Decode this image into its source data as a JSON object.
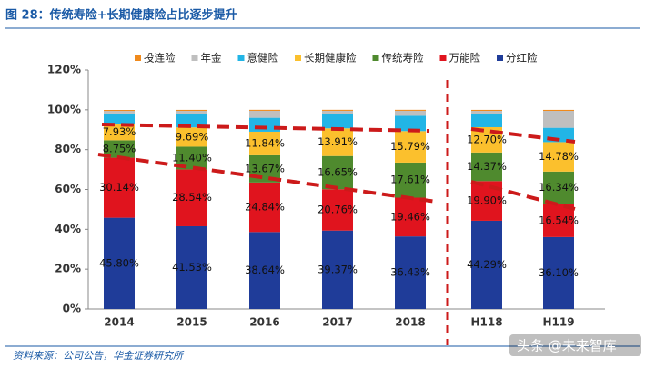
{
  "chart_data": {
    "type": "stacked-bar",
    "title": "图 28：传统寿险+长期健康险占比逐步提升",
    "source": "资料来源：公司公告，华金证券研究所",
    "categories": [
      "2014",
      "2015",
      "2016",
      "2017",
      "2018",
      "H118",
      "H119"
    ],
    "series": [
      {
        "name": "投连险",
        "color": "#f08a1c",
        "values": [
          0.5,
          0.5,
          0.5,
          0.5,
          0.5,
          0.5,
          0.5
        ]
      },
      {
        "name": "年金",
        "color": "#bfbfbf",
        "values": [
          1.3,
          1.5,
          3.5,
          1.5,
          2.5,
          1.5,
          8.5
        ]
      },
      {
        "name": "意健险",
        "color": "#22b5e6",
        "values": [
          5.5,
          6.8,
          7.0,
          7.3,
          7.7,
          6.7,
          7.2
        ]
      },
      {
        "name": "长期健康险",
        "color": "#fbc02d",
        "values": [
          7.93,
          9.69,
          11.84,
          13.91,
          15.79,
          12.7,
          14.78
        ],
        "value_labels": [
          "7.93%",
          "9.69%",
          "11.84%",
          "13.91%",
          "15.79%",
          "12.70%",
          "14.78%"
        ]
      },
      {
        "name": "传统寿险",
        "color": "#4f8a2e",
        "values": [
          8.75,
          11.4,
          13.67,
          16.65,
          17.61,
          14.37,
          16.34
        ],
        "value_labels": [
          "8.75%",
          "11.40%",
          "13.67%",
          "16.65%",
          "17.61%",
          "14.37%",
          "16.34%"
        ]
      },
      {
        "name": "万能险",
        "color": "#e0141e",
        "values": [
          30.14,
          28.54,
          24.84,
          20.76,
          19.46,
          19.9,
          16.54
        ],
        "value_labels": [
          "30.14%",
          "28.54%",
          "24.84%",
          "20.76%",
          "19.46%",
          "19.90%",
          "16.54%"
        ]
      },
      {
        "name": "分红险",
        "color": "#1f3c99",
        "values": [
          45.8,
          41.53,
          38.64,
          39.37,
          36.43,
          44.29,
          36.1
        ],
        "value_labels": [
          "45.80%",
          "41.53%",
          "38.64%",
          "39.37%",
          "36.43%",
          "44.29%",
          "36.10%"
        ]
      }
    ],
    "ylim": [
      0,
      120
    ],
    "yticks": [
      {
        "value": 0,
        "label": "0%"
      },
      {
        "value": 20,
        "label": "20%"
      },
      {
        "value": 40,
        "label": "40%"
      },
      {
        "value": 60,
        "label": "60%"
      },
      {
        "value": 80,
        "label": "80%"
      },
      {
        "value": 100,
        "label": "100%"
      },
      {
        "value": 120,
        "label": "120%"
      }
    ],
    "grid": false
  },
  "watermark": "头条 @未来智库"
}
